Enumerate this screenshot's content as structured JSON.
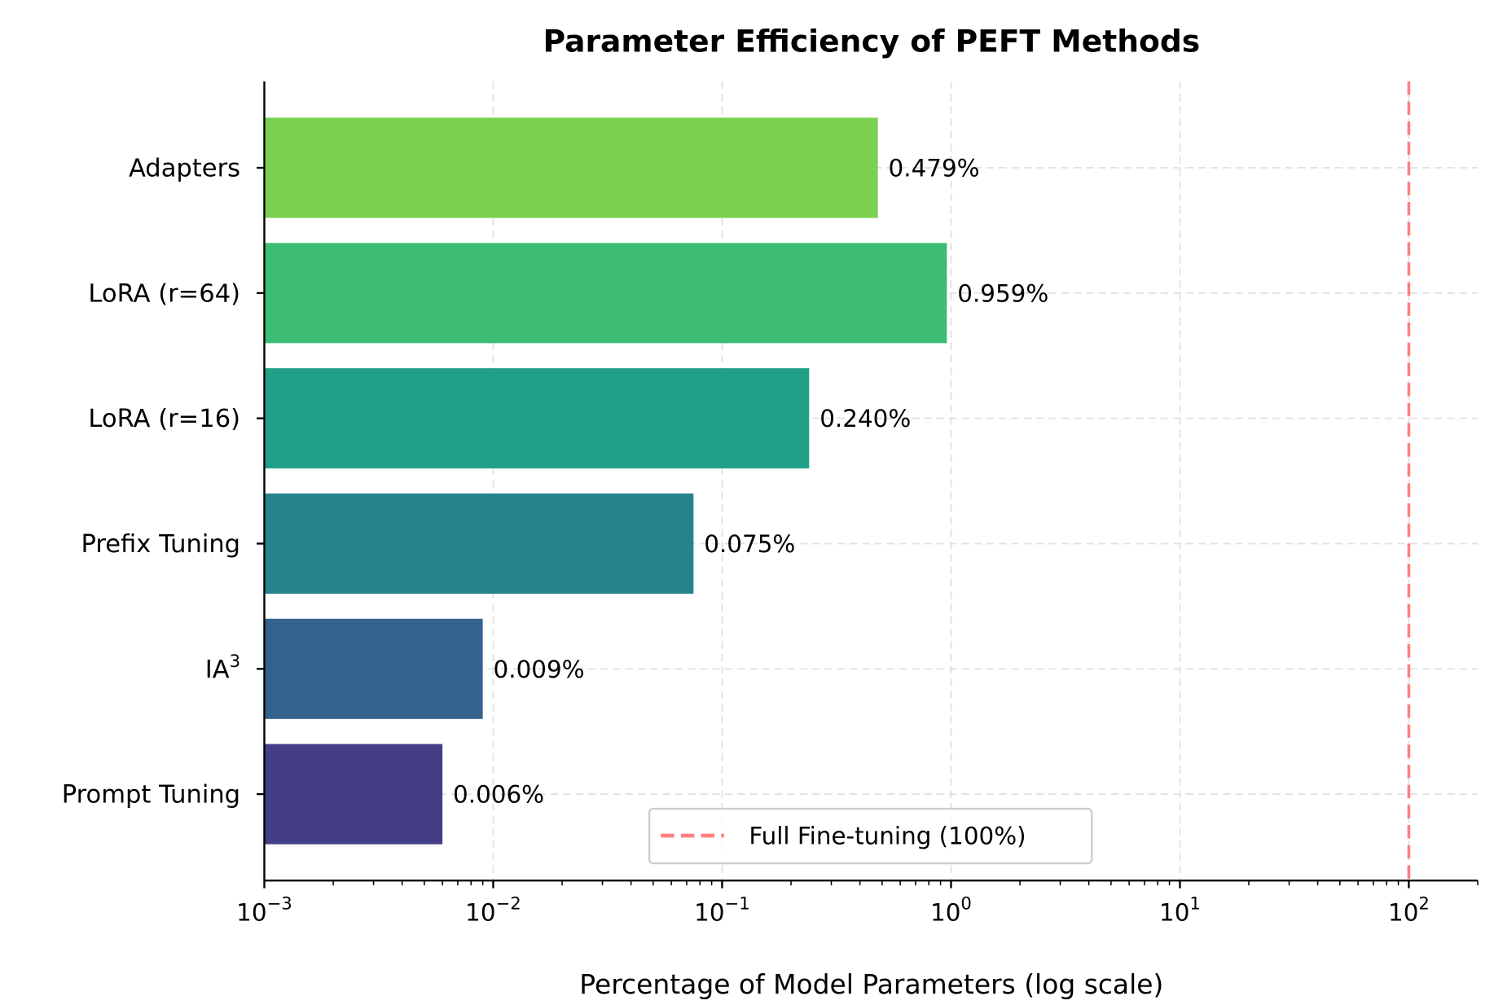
{
  "chart_data": {
    "type": "bar",
    "orientation": "horizontal",
    "title": "Parameter Efficiency of PEFT Methods",
    "xlabel": "Percentage of Model Parameters (log scale)",
    "ylabel": "",
    "xscale": "log",
    "xlim": [
      0.001,
      200
    ],
    "grid": true,
    "categories": [
      "Prompt Tuning",
      "IA³",
      "Prefix Tuning",
      "LoRA (r=16)",
      "LoRA (r=64)",
      "Adapters"
    ],
    "values": [
      0.006,
      0.009,
      0.075,
      0.24,
      0.959,
      0.479
    ],
    "value_labels": [
      "0.006%",
      "0.009%",
      "0.075%",
      "0.240%",
      "0.959%",
      "0.479%"
    ],
    "colors": [
      "#433e85",
      "#33638d",
      "#25838e",
      "#20a087",
      "#3dbc74",
      "#7ad151"
    ],
    "x_tick_labels": [
      {
        "base": "10",
        "exp": "−3"
      },
      {
        "base": "10",
        "exp": "−2"
      },
      {
        "base": "10",
        "exp": "−1"
      },
      {
        "base": "10",
        "exp": "0"
      },
      {
        "base": "10",
        "exp": "1"
      },
      {
        "base": "10",
        "exp": "2"
      }
    ],
    "reference_line": {
      "x": 100,
      "color": "#ff7f7f",
      "style": "dashed",
      "label": "Full Fine-tuning (100%)"
    },
    "legend": {
      "placement": "lower-center",
      "entries": [
        "Full Fine-tuning (100%)"
      ]
    }
  }
}
